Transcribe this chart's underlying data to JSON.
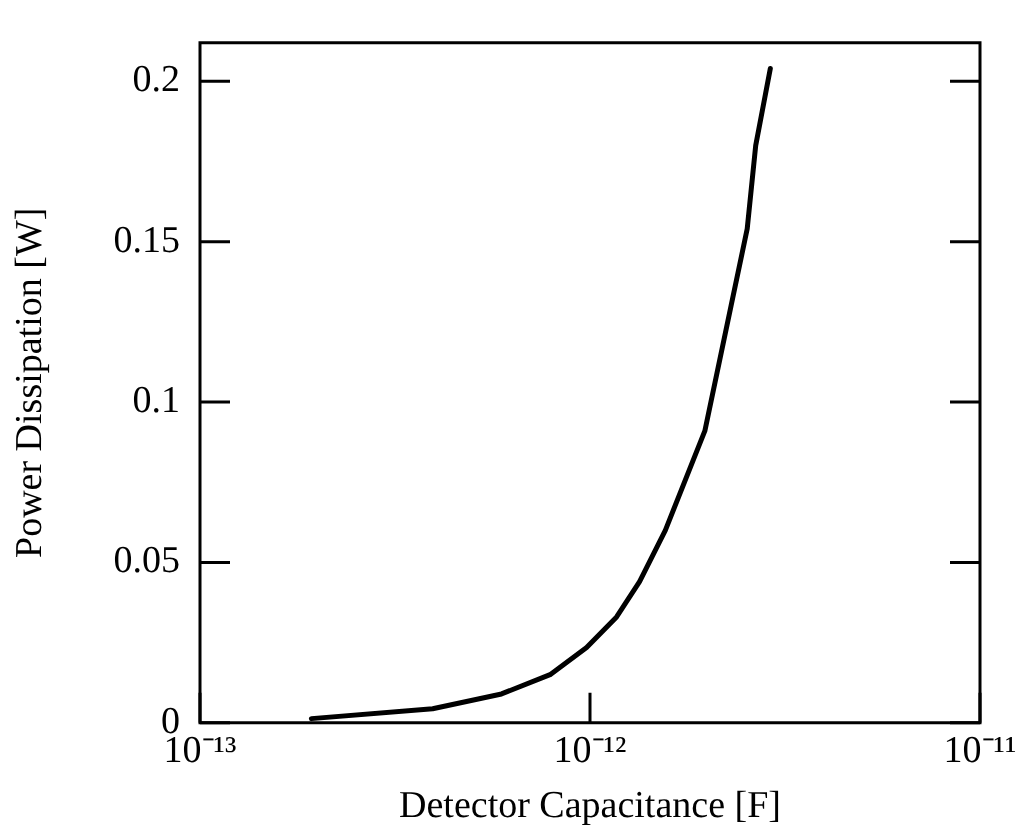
{
  "chart_data": {
    "type": "line",
    "xlabel": "Detector Capacitance [F]",
    "ylabel": "Power Dissipation [W]",
    "x": [
      1.93e-13,
      3.95e-13,
      5.93e-13,
      7.9e-13,
      9.8e-13,
      1.17e-12,
      1.34e-12,
      1.56e-12,
      1.97e-12,
      2.3e-12,
      2.53e-12,
      2.66e-12,
      2.9e-12
    ],
    "series": [
      {
        "color": "#000000",
        "values": [
          0.0013,
          0.0044,
          0.009,
          0.015,
          0.0235,
          0.033,
          0.044,
          0.06,
          0.091,
          0.13,
          0.154,
          0.18,
          0.204
        ]
      }
    ],
    "log": "x",
    "xlim": [
      1e-13,
      1e-11
    ],
    "xticks": [
      {
        "value": 1e-13,
        "label": "10⁻¹³"
      },
      {
        "value": 1e-12,
        "label": "10⁻¹²"
      },
      {
        "value": 1e-11,
        "label": "10⁻¹¹"
      }
    ],
    "ylim": [
      0,
      0.212
    ],
    "yticks": [
      {
        "value": 0,
        "label": "0"
      },
      {
        "value": 0.05,
        "label": "0.05"
      },
      {
        "value": 0.1,
        "label": "0.1"
      },
      {
        "value": 0.15,
        "label": "0.15"
      },
      {
        "value": 0.2,
        "label": "0.2"
      }
    ],
    "grid": false,
    "legend": false,
    "marker": "none",
    "line_style": "solid"
  }
}
